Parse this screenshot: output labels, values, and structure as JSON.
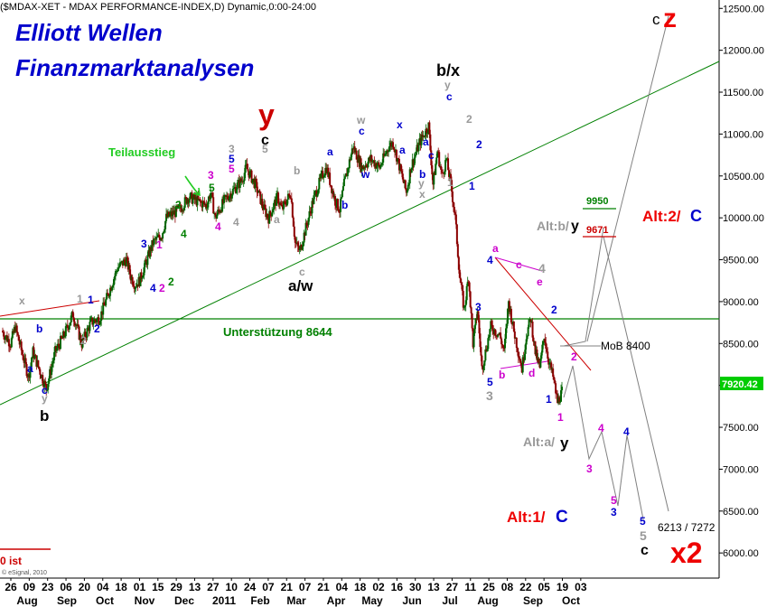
{
  "header": {
    "title": "($MDAX-XET - MDAX PERFORMANCE-INDEX,D) Dynamic,0:00-24:00",
    "brand_line1": "Elliott Wellen",
    "brand_line2": "Finanzmarktanalysen",
    "copyright": "© eSignal, 2010",
    "corner_fragment": "0 ist"
  },
  "colors": {
    "up_candle": "#006400",
    "down_candle": "#8b0000",
    "support": "#008000",
    "trendline": "#008000",
    "projection": "#808080",
    "brand": "#0000cc",
    "last_price_bg": "#00cc00"
  },
  "chart_data": {
    "type": "candlestick",
    "x_tick_labels": [
      "26",
      "09",
      "23",
      "06",
      "20",
      "04",
      "18",
      "01",
      "15",
      "29",
      "13",
      "27",
      "10",
      "24",
      "07",
      "21",
      "07",
      "21",
      "04",
      "18",
      "02",
      "16",
      "30",
      "13",
      "27",
      "11",
      "25",
      "08",
      "22",
      "05",
      "19",
      "03"
    ],
    "month_labels": [
      "Aug",
      "Sep",
      "Oct",
      "Nov",
      "Dec",
      "2011",
      "Feb",
      "Mar",
      "Apr",
      "May",
      "Jun",
      "Jul",
      "Aug",
      "Sep",
      "Oct"
    ],
    "y_axis": {
      "min": 5700,
      "max": 12600,
      "ticks": [
        6000,
        6500,
        7000,
        7500,
        8000,
        8500,
        9000,
        9500,
        10000,
        10500,
        11000,
        11500,
        12000,
        12500
      ]
    },
    "last_price": "7920.42",
    "closes_anchor_points": [
      {
        "t": 0,
        "v": 8650
      },
      {
        "t": 2,
        "v": 8500
      },
      {
        "t": 3,
        "v": 8700
      },
      {
        "t": 5,
        "v": 8300
      },
      {
        "t": 6,
        "v": 8100
      },
      {
        "t": 7,
        "v": 8400
      },
      {
        "t": 10,
        "v": 7960
      },
      {
        "t": 12,
        "v": 8400
      },
      {
        "t": 14,
        "v": 8600
      },
      {
        "t": 16,
        "v": 8850
      },
      {
        "t": 18,
        "v": 8500
      },
      {
        "t": 20,
        "v": 8750
      },
      {
        "t": 22,
        "v": 8800
      },
      {
        "t": 24,
        "v": 9100
      },
      {
        "t": 26,
        "v": 9400
      },
      {
        "t": 28,
        "v": 9500
      },
      {
        "t": 29,
        "v": 9300
      },
      {
        "t": 30,
        "v": 9200
      },
      {
        "t": 31,
        "v": 9250
      },
      {
        "t": 34,
        "v": 9700
      },
      {
        "t": 36,
        "v": 9800
      },
      {
        "t": 37,
        "v": 10000
      },
      {
        "t": 40,
        "v": 10100
      },
      {
        "t": 42,
        "v": 10250
      },
      {
        "t": 44,
        "v": 10200
      },
      {
        "t": 46,
        "v": 10150
      },
      {
        "t": 47,
        "v": 10300
      },
      {
        "t": 48,
        "v": 10000
      },
      {
        "t": 50,
        "v": 10200
      },
      {
        "t": 54,
        "v": 10450
      },
      {
        "t": 55,
        "v": 10600
      },
      {
        "t": 57,
        "v": 10400
      },
      {
        "t": 59,
        "v": 10100
      },
      {
        "t": 60,
        "v": 10000
      },
      {
        "t": 62,
        "v": 10250
      },
      {
        "t": 63,
        "v": 10100
      },
      {
        "t": 65,
        "v": 10300
      },
      {
        "t": 66,
        "v": 9700
      },
      {
        "t": 67,
        "v": 9600
      },
      {
        "t": 68,
        "v": 9800
      },
      {
        "t": 70,
        "v": 10200
      },
      {
        "t": 72,
        "v": 10500
      },
      {
        "t": 73,
        "v": 10600
      },
      {
        "t": 75,
        "v": 10200
      },
      {
        "t": 76,
        "v": 10100
      },
      {
        "t": 77,
        "v": 10400
      },
      {
        "t": 79,
        "v": 10850
      },
      {
        "t": 81,
        "v": 10600
      },
      {
        "t": 83,
        "v": 10700
      },
      {
        "t": 85,
        "v": 10600
      },
      {
        "t": 87,
        "v": 10850
      },
      {
        "t": 88,
        "v": 10900
      },
      {
        "t": 90,
        "v": 10500
      },
      {
        "t": 91,
        "v": 10300
      },
      {
        "t": 92,
        "v": 10600
      },
      {
        "t": 94,
        "v": 10900
      },
      {
        "t": 96,
        "v": 11100
      },
      {
        "t": 97,
        "v": 10400
      },
      {
        "t": 98,
        "v": 10800
      },
      {
        "t": 99,
        "v": 10500
      },
      {
        "t": 100,
        "v": 10700
      },
      {
        "t": 101,
        "v": 10400
      },
      {
        "t": 102,
        "v": 10000
      },
      {
        "t": 103,
        "v": 9300
      },
      {
        "t": 104,
        "v": 8900
      },
      {
        "t": 105,
        "v": 9300
      },
      {
        "t": 106,
        "v": 8500
      },
      {
        "t": 107,
        "v": 8900
      },
      {
        "t": 108,
        "v": 8200
      },
      {
        "t": 110,
        "v": 8700
      },
      {
        "t": 112,
        "v": 8600
      },
      {
        "t": 113,
        "v": 8400
      },
      {
        "t": 114,
        "v": 9000
      },
      {
        "t": 115,
        "v": 8700
      },
      {
        "t": 117,
        "v": 8200
      },
      {
        "t": 118,
        "v": 8600
      },
      {
        "t": 119,
        "v": 8800
      },
      {
        "t": 120,
        "v": 8400
      },
      {
        "t": 121,
        "v": 8200
      },
      {
        "t": 122,
        "v": 8600
      },
      {
        "t": 123,
        "v": 8300
      },
      {
        "t": 124,
        "v": 8100
      },
      {
        "t": 125,
        "v": 7800
      },
      {
        "t": 126,
        "v": 7920
      }
    ],
    "support_label": "Unterstützung 8644",
    "teilausstieg_label": "Teilausstieg",
    "scenario_labels": {
      "alt_b_y": "Alt:b/",
      "alt_b_y_y": "y",
      "alt_2_c": "Alt:2/",
      "alt_2_c_c": "C",
      "alt_a_y": "Alt:a/",
      "alt_a_y_y": "y",
      "alt_1_c": "Alt:1/",
      "alt_1_c_c": "C",
      "mob": "MoB 8400",
      "target_9950": "9950",
      "target_9671": "9671",
      "targets_low": "6213 / 7272",
      "z_c": "c",
      "z_big": "z",
      "x2_big": "x2",
      "b_x": "b/x",
      "y_big": "y",
      "a_w": "a/w",
      "b_bottom": "b"
    }
  }
}
